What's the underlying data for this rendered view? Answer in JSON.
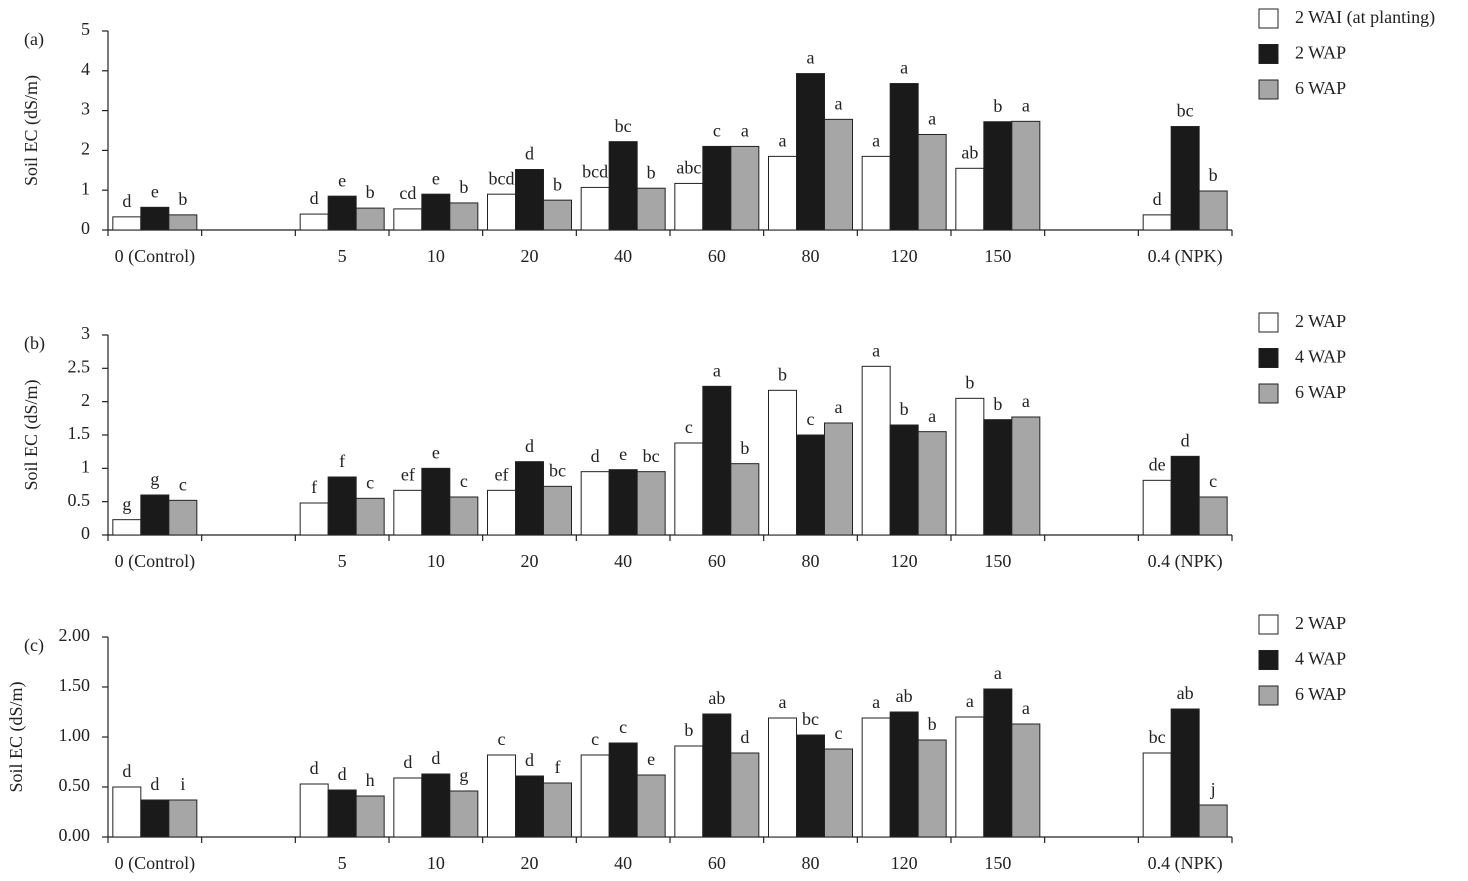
{
  "chart_data": [
    {
      "type": "bar",
      "panel_label": "(a)",
      "y_label": "Soil EC (dS/m)",
      "categories": [
        "0 (Control)",
        null,
        "5",
        "10",
        "20",
        "40",
        "60",
        "80",
        "120",
        "150",
        null,
        "0.4 (NPK)"
      ],
      "ylim": [
        0,
        5
      ],
      "yticks": [
        0,
        1,
        2,
        3,
        4,
        5
      ],
      "series": [
        {
          "name": "2 WAI (at planting)",
          "color": "#ffffff",
          "values": [
            0.33,
            null,
            0.4,
            0.53,
            0.9,
            1.07,
            1.17,
            1.85,
            1.85,
            1.55,
            null,
            0.38
          ],
          "letters": [
            "d",
            null,
            "d",
            "cd",
            "bcd",
            "bcd",
            "abc",
            "a",
            "a",
            "ab",
            null,
            "d"
          ]
        },
        {
          "name": "2 WAP",
          "color": "#1a1a1a",
          "values": [
            0.57,
            null,
            0.85,
            0.9,
            1.52,
            2.22,
            2.1,
            3.93,
            3.68,
            2.72,
            null,
            2.6
          ],
          "letters": [
            "e",
            null,
            "e",
            "e",
            "d",
            "bc",
            "c",
            "a",
            "a",
            "b",
            null,
            "bc"
          ]
        },
        {
          "name": "6 WAP",
          "color": "#a6a6a6",
          "values": [
            0.38,
            null,
            0.55,
            0.68,
            0.75,
            1.05,
            2.1,
            2.78,
            2.4,
            2.73,
            null,
            0.98
          ],
          "letters": [
            "b",
            null,
            "b",
            "b",
            "b",
            "b",
            "a",
            "a",
            "a",
            "a",
            null,
            "b"
          ]
        }
      ]
    },
    {
      "type": "bar",
      "panel_label": "(b)",
      "y_label": "Soil EC (dS/m)",
      "categories": [
        "0 (Control)",
        null,
        "5",
        "10",
        "20",
        "40",
        "60",
        "80",
        "120",
        "150",
        null,
        "0.4 (NPK)"
      ],
      "ylim": [
        0,
        3
      ],
      "yticks": [
        0,
        0.5,
        1,
        1.5,
        2,
        2.5,
        3
      ],
      "series": [
        {
          "name": "2 WAP",
          "color": "#ffffff",
          "values": [
            0.23,
            null,
            0.48,
            0.67,
            0.67,
            0.95,
            1.38,
            2.17,
            2.53,
            2.05,
            null,
            0.82
          ],
          "letters": [
            "g",
            null,
            "f",
            "ef",
            "ef",
            "d",
            "c",
            "b",
            "a",
            "b",
            null,
            "de"
          ]
        },
        {
          "name": "4 WAP",
          "color": "#1a1a1a",
          "values": [
            0.6,
            null,
            0.87,
            1.0,
            1.1,
            0.98,
            2.23,
            1.5,
            1.65,
            1.73,
            null,
            1.18
          ],
          "letters": [
            "g",
            null,
            "f",
            "e",
            "d",
            "e",
            "a",
            "c",
            "b",
            "b",
            null,
            "d"
          ]
        },
        {
          "name": "6 WAP",
          "color": "#a6a6a6",
          "values": [
            0.52,
            null,
            0.55,
            0.57,
            0.73,
            0.95,
            1.07,
            1.68,
            1.55,
            1.77,
            null,
            0.57
          ],
          "letters": [
            "c",
            null,
            "c",
            "c",
            "bc",
            "bc",
            "b",
            "a",
            "a",
            "a",
            null,
            "c"
          ]
        }
      ]
    },
    {
      "type": "bar",
      "panel_label": "(c)",
      "y_label": "Soil EC (dS/m)",
      "categories": [
        "0 (Control)",
        null,
        "5",
        "10",
        "20",
        "40",
        "60",
        "80",
        "120",
        "150",
        null,
        "0.4 (NPK)"
      ],
      "ylim": [
        0,
        2
      ],
      "yticks": [
        {
          "value": 0,
          "label": "0.00"
        },
        {
          "value": 0.5,
          "label": "0.50"
        },
        {
          "value": 1,
          "label": "1.00"
        },
        {
          "value": 1.5,
          "label": "1.50"
        },
        {
          "value": 2,
          "label": "2.00"
        }
      ],
      "series": [
        {
          "name": "2 WAP",
          "color": "#ffffff",
          "values": [
            0.5,
            null,
            0.53,
            0.59,
            0.82,
            0.82,
            0.91,
            1.19,
            1.19,
            1.2,
            null,
            0.84
          ],
          "letters": [
            "d",
            null,
            "d",
            "d",
            "c",
            "c",
            "b",
            "a",
            "a",
            "a",
            null,
            "bc"
          ]
        },
        {
          "name": "4 WAP",
          "color": "#1a1a1a",
          "values": [
            0.37,
            null,
            0.47,
            0.63,
            0.61,
            0.94,
            1.23,
            1.02,
            1.25,
            1.48,
            null,
            1.28
          ],
          "letters": [
            "d",
            null,
            "d",
            "d",
            "d",
            "c",
            "ab",
            "bc",
            "ab",
            "a",
            null,
            "ab"
          ]
        },
        {
          "name": "6 WAP",
          "color": "#a6a6a6",
          "values": [
            0.37,
            null,
            0.41,
            0.46,
            0.54,
            0.62,
            0.84,
            0.88,
            0.97,
            1.13,
            null,
            0.32
          ],
          "letters": [
            "i",
            null,
            "h",
            "g",
            "f",
            "e",
            "d",
            "c",
            "b",
            "a",
            null,
            "j"
          ]
        }
      ]
    }
  ]
}
